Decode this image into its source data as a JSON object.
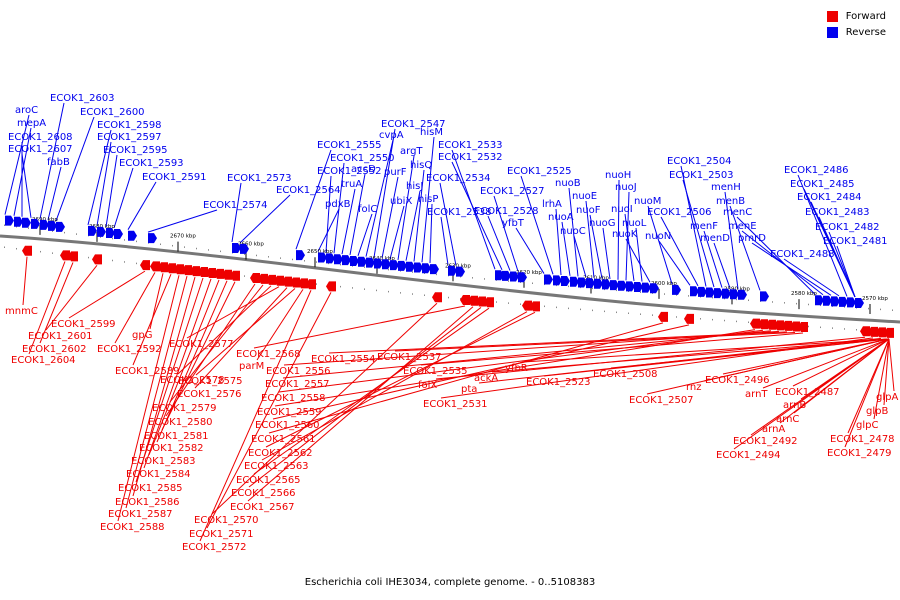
{
  "legend": {
    "forward_label": "Forward",
    "reverse_label": "Reverse",
    "forward_color": "#ee0000",
    "reverse_color": "#0000ee"
  },
  "caption": "Escherichia coli IHE3034, complete genome. - 0..5108383",
  "ticks": [
    "2690 kbp",
    "2680 kbp",
    "2670 kbp",
    "2660 kbp",
    "2650 kbp",
    "2640 kbp",
    "2630 kbp",
    "2620 kbp",
    "2610 kbp",
    "2600 kbp",
    "2590 kbp",
    "2580 kbp",
    "2570 kbp"
  ],
  "reverse_genes": [
    "aroC",
    "mepA",
    "ECOK1_2608",
    "ECOK1_2607",
    "ECOK1_2603",
    "fabB",
    "ECOK1_2600",
    "ECOK1_2598",
    "ECOK1_2597",
    "ECOK1_2595",
    "ECOK1_2593",
    "ECOK1_2591",
    "ECOK1_2574",
    "ECOK1_2573",
    "ECOK1_2564",
    "ECOK1_2555",
    "pdxB",
    "ECOK1_2552",
    "ECOK1_2550",
    "truA",
    "accD",
    "folC",
    "cvpA",
    "ECOK1_2547",
    "purF",
    "ubiX",
    "argT",
    "hisJ",
    "hisQ",
    "hisM",
    "hisP",
    "ECOK1_2538",
    "ECOK1_2534",
    "ECOK1_2533",
    "ECOK1_2532",
    "ECOK1_2528",
    "ECOK1_2527",
    "yfbT",
    "ECOK1_2525",
    "lrhA",
    "nuoA",
    "nuoB",
    "nuoC",
    "nuoE",
    "nuoF",
    "nuoG",
    "nuoH",
    "nuoJ",
    "nuoI",
    "nuoL",
    "nuoK",
    "nuoM",
    "nuoN",
    "ECOK1_2506",
    "ECOK1_2504",
    "ECOK1_2503",
    "menF",
    "menD",
    "menH",
    "menB",
    "menC",
    "menE",
    "pmrD",
    "ECOK1_2488",
    "ECOK1_2486",
    "ECOK1_2485",
    "ECOK1_2484",
    "ECOK1_2483",
    "ECOK1_2482",
    "ECOK1_2481"
  ],
  "forward_genes": [
    "mnmC",
    "ECOK1_2604",
    "ECOK1_2602",
    "ECOK1_2601",
    "ECOK1_2599",
    "ECOK1_2592",
    "gpG",
    "ECOK1_2589",
    "ECOK1_2588",
    "ECOK1_2587",
    "ECOK1_2586",
    "ECOK1_2585",
    "ECOK1_2584",
    "ECOK1_2583",
    "ECOK1_2582",
    "ECOK1_2581",
    "ECOK1_2580",
    "ECOK1_2579",
    "ECOK1_2578",
    "ECOK1_2577",
    "ECOK1_2576",
    "ECOK1_2575",
    "parM",
    "ECOK1_2572",
    "ECOK1_2571",
    "ECOK1_2570",
    "ECOK1_2568",
    "ECOK1_2567",
    "ECOK1_2566",
    "ECOK1_2565",
    "ECOK1_2563",
    "ECOK1_2562",
    "ECOK1_2561",
    "ECOK1_2560",
    "ECOK1_2559",
    "ECOK1_2558",
    "ECOK1_2557",
    "ECOK1_2556",
    "ECOK1_2554",
    "ECOK1_2537",
    "ECOK1_2535",
    "folX",
    "ECOK1_2531",
    "pta",
    "ackA",
    "yfbR",
    "ECOK1_2523",
    "ECOK1_2508",
    "ECOK1_2507",
    "rnz",
    "ECOK1_2496",
    "arnT",
    "arnA",
    "ECOK1_2494",
    "ECOK1_2492",
    "arnC",
    "arnB",
    "ECOK1_2487",
    "glpC",
    "glpB",
    "glpA",
    "ECOK1_2478",
    "ECOK1_2479"
  ]
}
